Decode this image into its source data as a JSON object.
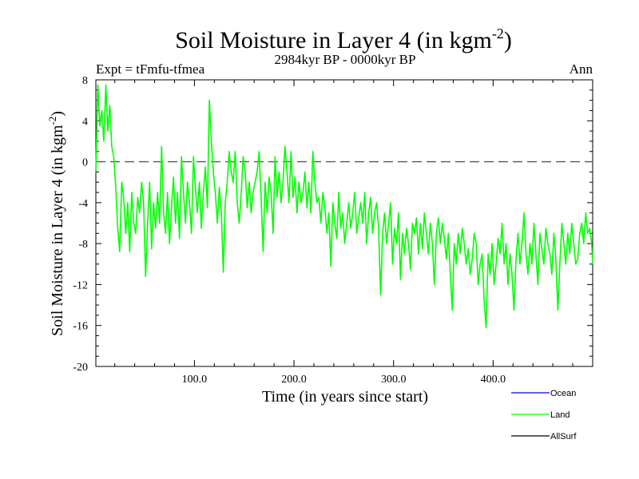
{
  "chart_data": {
    "type": "line",
    "title": "Soil Moisture in Layer 4 (in kgm",
    "title_sup": "-2",
    "title_close": ")",
    "subtitle_left": "Expt = tFmfu-tfmea",
    "subtitle_center": "2984kyr BP - 0000kyr BP",
    "subtitle_right": "Ann",
    "xlabel": "Time (in years since start)",
    "ylabel": "Soil Moisture in Layer 4 (in kgm",
    "ylabel_sup": "-2",
    "ylabel_close": ")",
    "xlim": [
      1,
      500
    ],
    "ylim": [
      -20,
      8
    ],
    "xticks": [
      100,
      200,
      300,
      400
    ],
    "xtick_labels": [
      "100.0",
      "200.0",
      "300.0",
      "400.0"
    ],
    "yticks": [
      8,
      4,
      0,
      -4,
      -8,
      -12,
      -16,
      -20
    ],
    "ytick_labels": [
      "8",
      "4",
      "0",
      "-4",
      "-8",
      "-12",
      "-16",
      "-20"
    ],
    "zero_line": 0,
    "legend": [
      {
        "name": "Ocean",
        "color": "#0000ff"
      },
      {
        "name": "Land",
        "color": "#00ff00"
      },
      {
        "name": "AllSurf",
        "color": "#000000"
      }
    ],
    "series": [
      {
        "name": "Land",
        "color": "#00ff00",
        "x_start": 1,
        "x_step": 2,
        "values": [
          -1.0,
          7.5,
          3.5,
          5.0,
          2.0,
          7.5,
          3.0,
          5.5,
          1.5,
          0.5,
          -2.5,
          -6.5,
          -8.8,
          -2.0,
          -3.5,
          -7.0,
          -4.0,
          -8.8,
          -3.0,
          -6.0,
          -7.0,
          -3.5,
          -5.0,
          -2.0,
          -4.0,
          -11.2,
          -6.0,
          -2.0,
          -8.5,
          -4.0,
          -6.5,
          -3.0,
          -6.0,
          1.5,
          -5.0,
          -7.0,
          -3.0,
          -8.0,
          -4.5,
          -1.5,
          -6.0,
          -3.0,
          -7.5,
          0.5,
          -3.0,
          -6.0,
          -2.0,
          -4.0,
          -7.0,
          0.5,
          -2.5,
          -5.0,
          -2.0,
          -6.5,
          -3.0,
          -0.5,
          -4.5,
          6.0,
          2.0,
          -1.0,
          -3.0,
          -6.0,
          -2.5,
          -5.0,
          -10.8,
          -4.0,
          -2.0,
          1.0,
          -1.0,
          -2.0,
          1.0,
          -4.0,
          -6.0,
          -3.0,
          0.5,
          -1.0,
          -4.5,
          -2.0,
          -5.0,
          -3.0,
          -2.0,
          -1.0,
          1.0,
          -3.5,
          -8.8,
          -2.0,
          -5.0,
          -1.5,
          -3.0,
          -7.0,
          0.5,
          -3.5,
          -1.0,
          -4.0,
          -2.0,
          1.5,
          -1.0,
          -4.0,
          1.0,
          -3.5,
          -1.5,
          -5.0,
          -2.0,
          -4.0,
          -3.0,
          -1.0,
          -4.5,
          -2.0,
          -5.0,
          1.0,
          -2.0,
          -4.0,
          -3.5,
          -6.0,
          -3.0,
          -4.5,
          -7.0,
          -5.0,
          -10.2,
          -4.0,
          -6.0,
          -7.5,
          -3.0,
          -6.5,
          -5.0,
          -8.0,
          -6.0,
          -4.0,
          -6.5,
          -5.0,
          -3.0,
          -7.0,
          -5.5,
          -4.0,
          -6.0,
          -3.0,
          -8.0,
          -5.0,
          -3.5,
          -7.0,
          -5.0,
          -4.0,
          -6.5,
          -13.0,
          -7.0,
          -5.0,
          -8.0,
          -6.0,
          -4.0,
          -10.0,
          -6.5,
          -8.0,
          -5.0,
          -11.5,
          -7.0,
          -9.0,
          -6.5,
          -8.0,
          -10.5,
          -6.0,
          -7.0,
          -5.5,
          -9.0,
          -6.0,
          -8.5,
          -5.0,
          -7.0,
          -9.0,
          -6.0,
          -8.0,
          -12.0,
          -7.0,
          -5.5,
          -8.0,
          -6.0,
          -7.5,
          -9.5,
          -7.0,
          -11.0,
          -14.5,
          -8.0,
          -10.0,
          -7.0,
          -9.0,
          -6.5,
          -8.0,
          -10.0,
          -8.5,
          -11.0,
          -9.5,
          -7.0,
          -8.0,
          -12.0,
          -10.0,
          -9.0,
          -13.5,
          -16.2,
          -9.0,
          -11.0,
          -8.0,
          -12.0,
          -10.0,
          -7.5,
          -9.0,
          -6.0,
          -10.0,
          -8.0,
          -12.0,
          -9.0,
          -11.0,
          -14.5,
          -9.5,
          -7.0,
          -10.0,
          -8.0,
          -5.0,
          -9.0,
          -11.0,
          -8.0,
          -10.0,
          -6.0,
          -9.0,
          -12.0,
          -7.0,
          -8.5,
          -10.0,
          -6.5,
          -8.0,
          -9.0,
          -11.0,
          -7.0,
          -9.5,
          -14.5,
          -10.0,
          -6.0,
          -8.0,
          -10.0,
          -7.0,
          -9.0,
          -6.0,
          -8.0,
          -10.0,
          -9.5,
          -7.0,
          -6.0,
          -8.0,
          -5.0,
          -7.0,
          -6.5,
          -8.0,
          -10.0
        ]
      }
    ]
  }
}
